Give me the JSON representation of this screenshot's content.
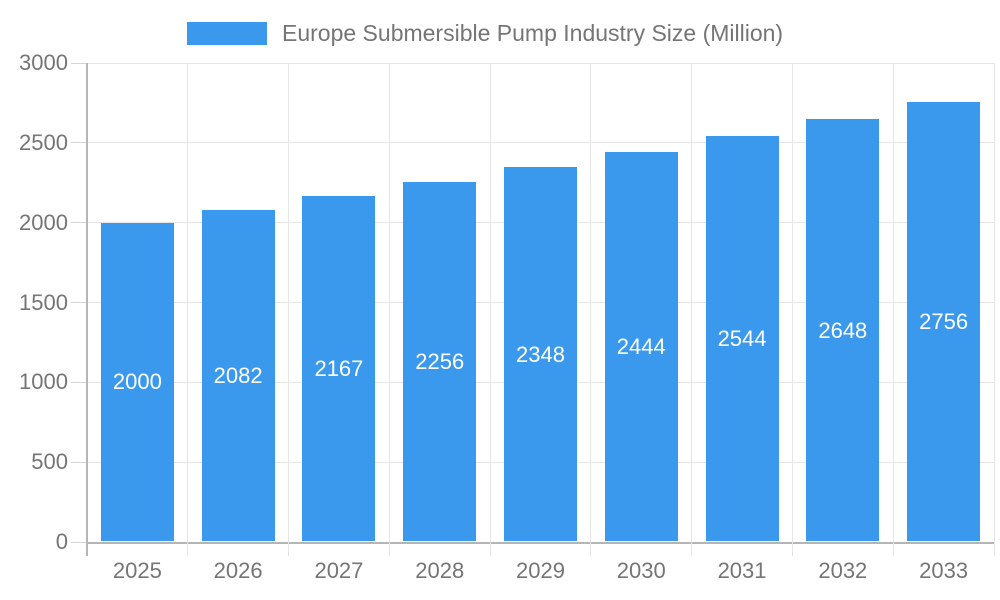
{
  "legend": {
    "label": "Europe Submersible Pump Industry Size (Million)"
  },
  "chart_data": {
    "type": "bar",
    "title": "Europe Submersible Pump Industry Size (Million)",
    "categories": [
      "2025",
      "2026",
      "2027",
      "2028",
      "2029",
      "2030",
      "2031",
      "2032",
      "2033"
    ],
    "series": [
      {
        "name": "Europe Submersible Pump Industry Size (Million)",
        "values": [
          2000,
          2082,
          2167,
          2256,
          2348,
          2444,
          2544,
          2648,
          2756
        ]
      }
    ],
    "xlabel": "",
    "ylabel": "",
    "ylim": [
      0,
      3000
    ],
    "yticks": [
      0,
      500,
      1000,
      1500,
      2000,
      2500,
      3000
    ],
    "grid": true,
    "legend_position": "top",
    "bar_labels_inside": true,
    "colors": {
      "bar": "#3B99ED",
      "bar_value_text": "#ffffff",
      "axis_text": "#757575",
      "axis_line": "#b5b5b5",
      "gridline": "#e6e6e6",
      "y_tick": "#d4d4d4",
      "background": "#ffffff"
    }
  }
}
